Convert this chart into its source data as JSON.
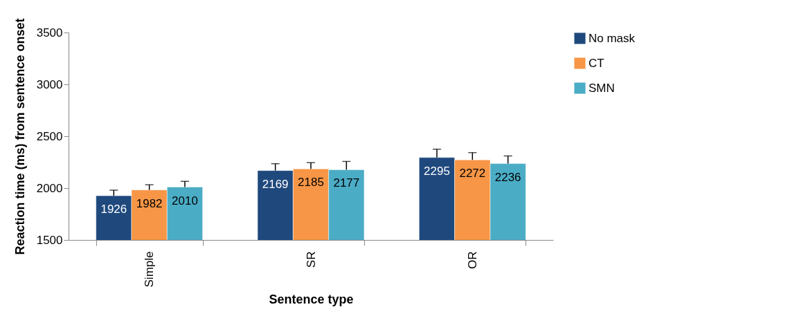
{
  "chart_data": {
    "type": "bar",
    "xlabel": "Sentence type",
    "ylabel": "Reaction time (ms) from sentence onset",
    "categories": [
      "Simple",
      "SR",
      "OR"
    ],
    "series": [
      {
        "name": "No mask",
        "color": "#1f497d",
        "values": [
          1926,
          2169,
          2295
        ],
        "errors": [
          [
            1926,
            1980
          ],
          [
            2169,
            2235
          ],
          [
            2295,
            2375
          ]
        ]
      },
      {
        "name": "CT",
        "color": "#f79646",
        "values": [
          1982,
          2185,
          2272
        ],
        "errors": [
          [
            1982,
            2032
          ],
          [
            2185,
            2245
          ],
          [
            2272,
            2342
          ]
        ]
      },
      {
        "name": "SMN",
        "color": "#4bacc6",
        "values": [
          2010,
          2177,
          2236
        ],
        "errors": [
          [
            2010,
            2065
          ],
          [
            2177,
            2257
          ],
          [
            2236,
            2310
          ]
        ]
      }
    ],
    "ylim": [
      1500,
      3500
    ],
    "yticks": [
      1500,
      2000,
      2500,
      3000,
      3500
    ],
    "grid": false,
    "legend": "right",
    "data_labels": true
  }
}
